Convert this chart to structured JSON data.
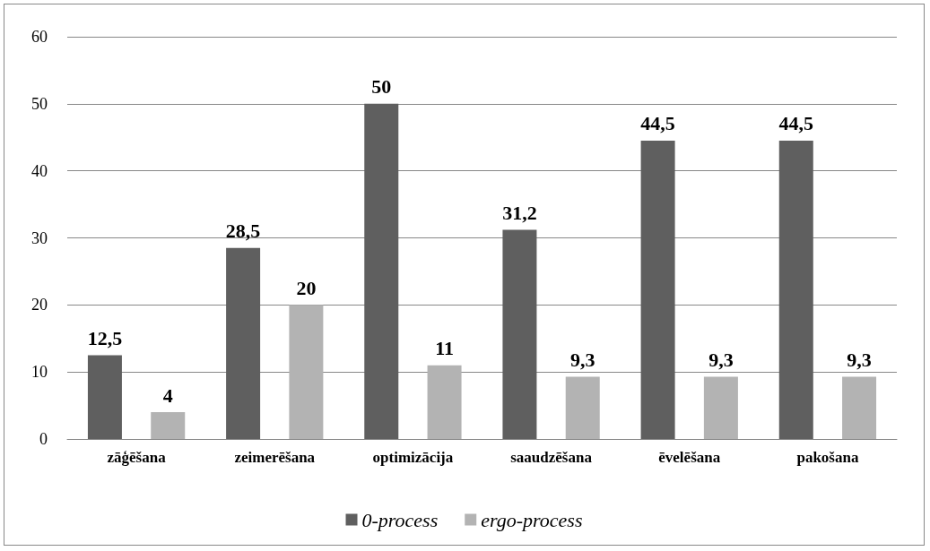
{
  "chart_data": {
    "type": "bar",
    "categories": [
      "zāģēšana",
      "zeimerēšana",
      "optimizācija",
      "saaudzēšana",
      "ēvelēšana",
      "pakošana"
    ],
    "series": [
      {
        "name": "0-process",
        "color": "#5f5f5f",
        "values": [
          12.5,
          28.5,
          50,
          31.2,
          44.5,
          44.5
        ],
        "value_labels": [
          "12,5",
          "28,5",
          "50",
          "31,2",
          "44,5",
          "44,5"
        ]
      },
      {
        "name": "ergo-process",
        "color": "#b3b3b3",
        "values": [
          4,
          20,
          11,
          9.3,
          9.3,
          9.3
        ],
        "value_labels": [
          "4",
          "20",
          "11",
          "9,3",
          "9,3",
          "9,3"
        ]
      }
    ],
    "ylim": [
      0,
      60
    ],
    "yticks": [
      0,
      10,
      20,
      30,
      40,
      50,
      60
    ],
    "grid": "y",
    "legend": "bottom"
  }
}
